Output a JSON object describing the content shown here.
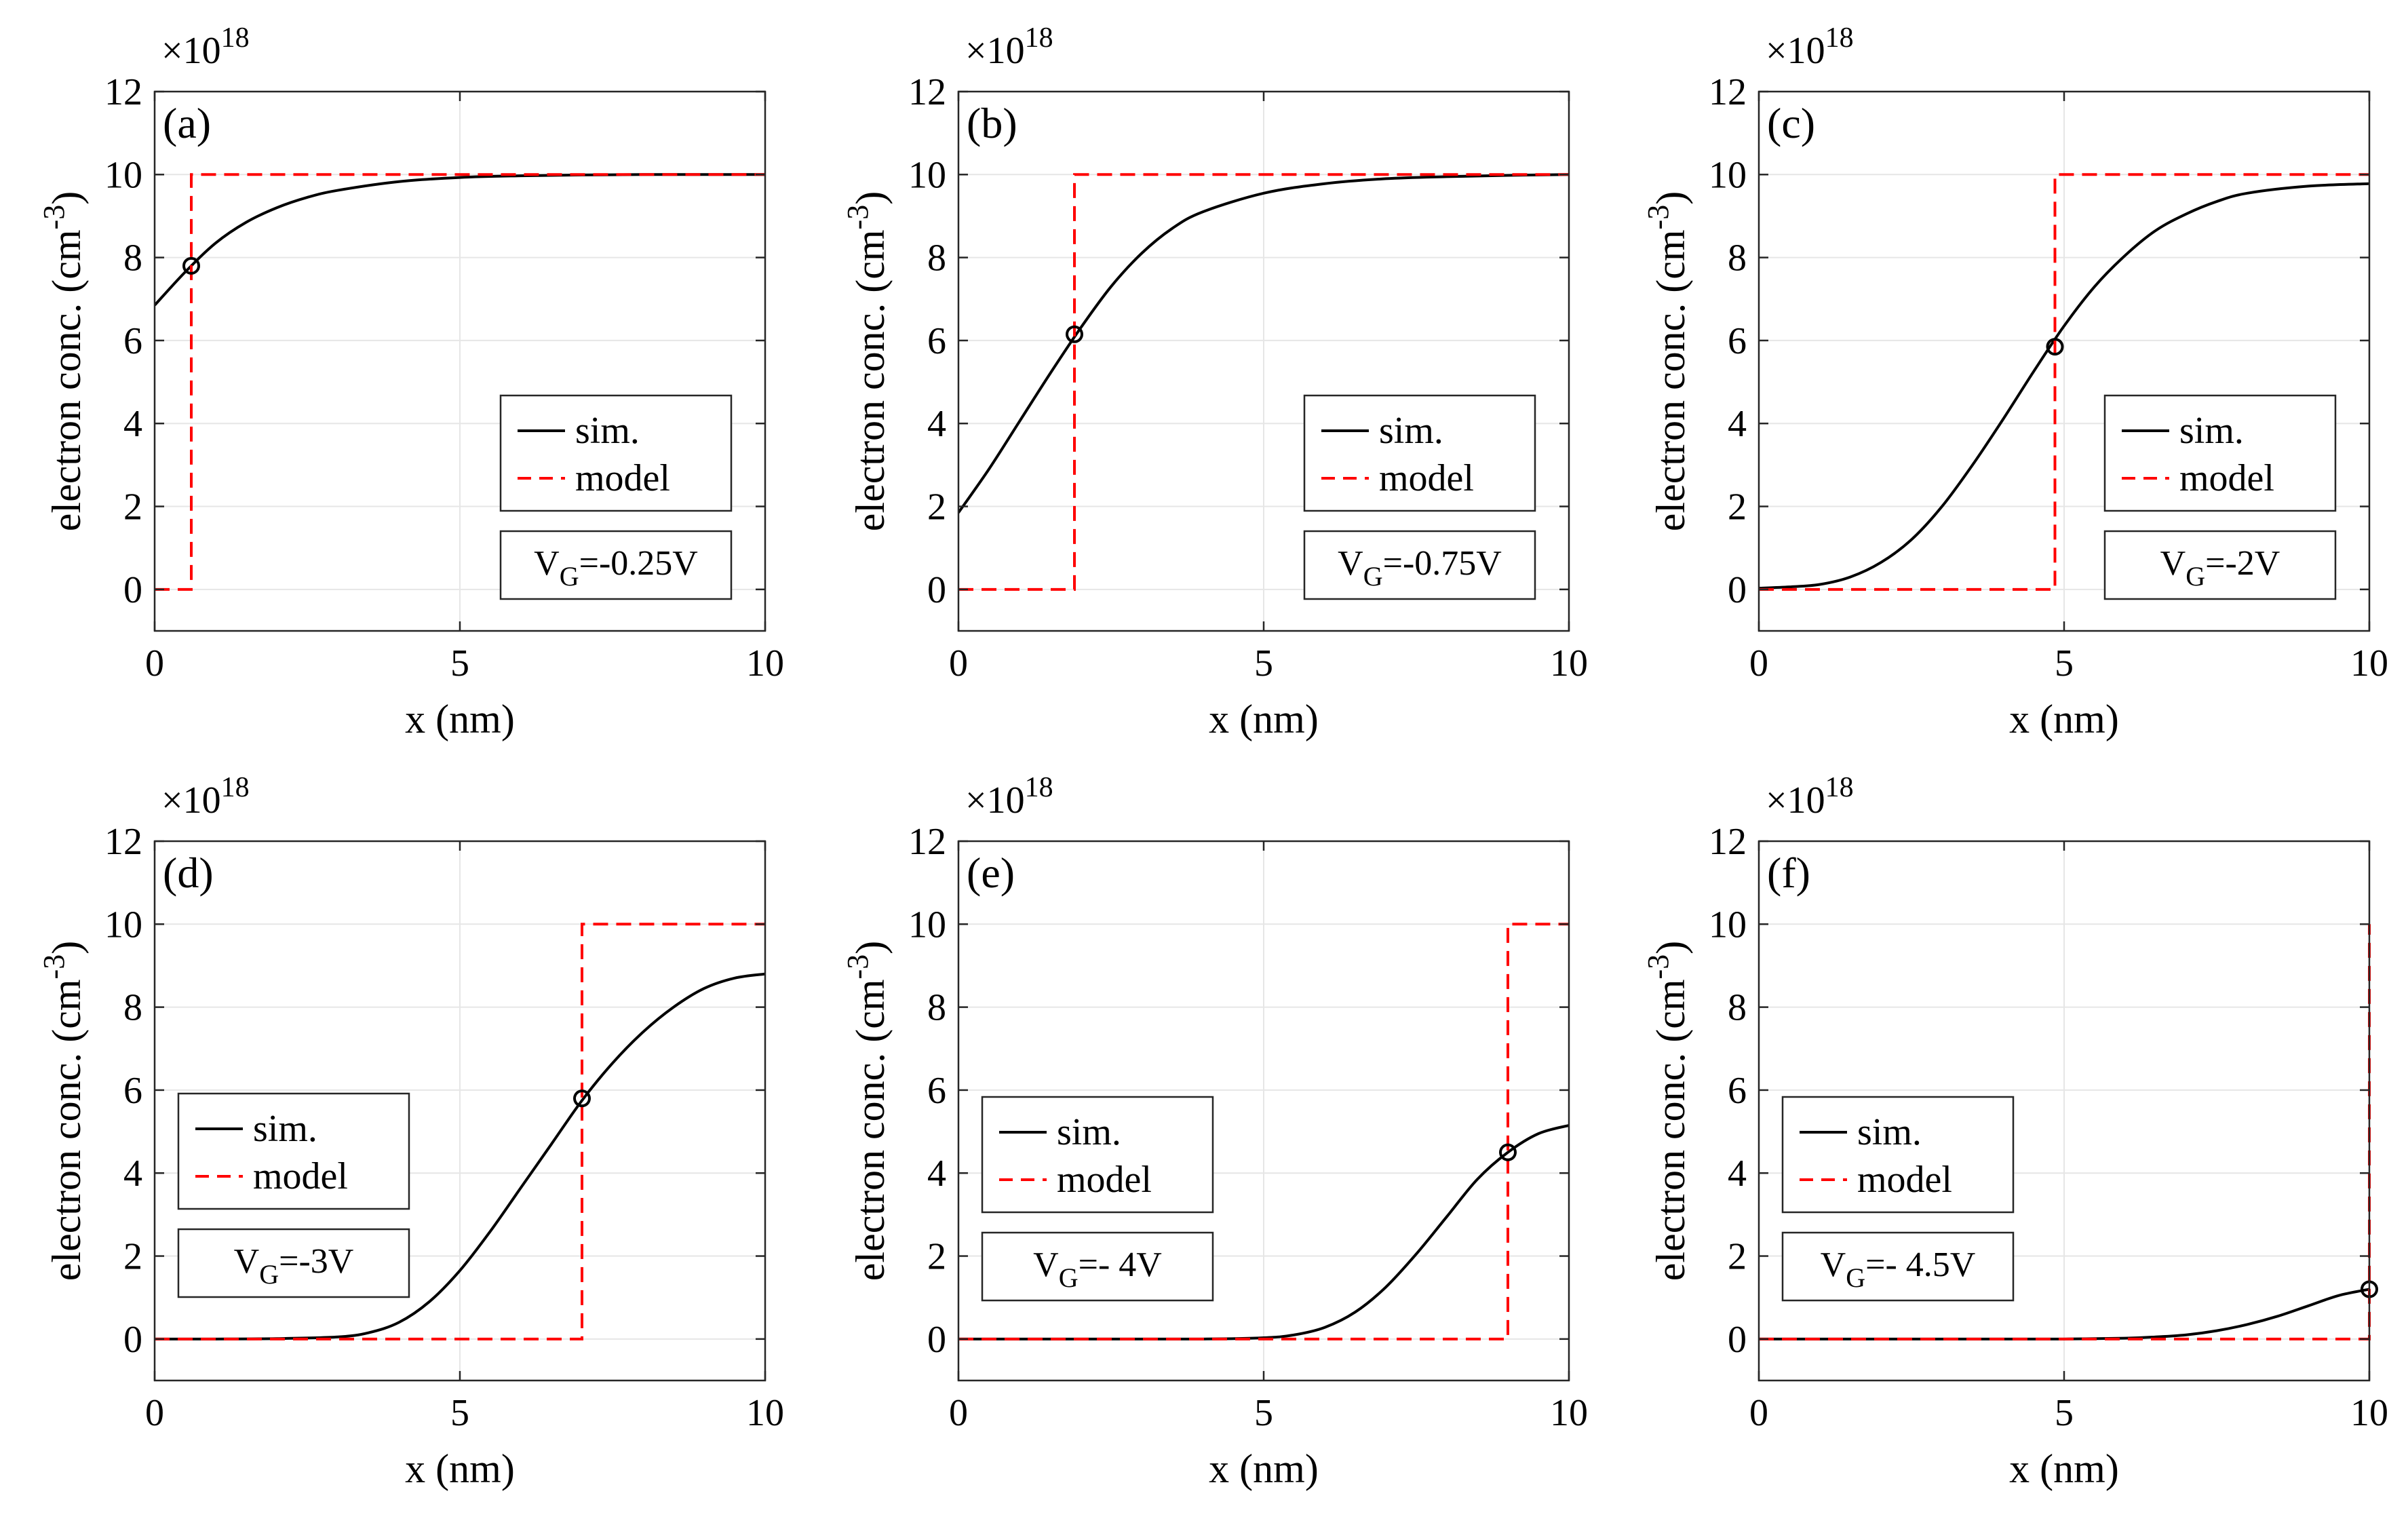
{
  "figure": {
    "multiplier_base": "×10",
    "multiplier_exp": "18"
  },
  "colors": {
    "sim": "#000000",
    "model": "#ff0000",
    "grid": "#e6e6e6",
    "axis": "#262626"
  },
  "chart_data": [
    {
      "type": "line",
      "label": "(a)",
      "xlabel": "x (nm)",
      "ylabel": "electron conc. (cm",
      "ylabel_exp": "-3",
      "xlim": [
        0,
        10
      ],
      "ylim": [
        -1,
        12
      ],
      "xticks": [
        0,
        5,
        10
      ],
      "yticks": [
        0,
        2,
        4,
        6,
        8,
        10,
        12
      ],
      "legend": {
        "sim": "sim.",
        "model": "model",
        "position": "center-right"
      },
      "annotation": {
        "pre": "V",
        "sub": "G",
        "post": "=-0.25V"
      },
      "series": [
        {
          "name": "sim.",
          "style": "solid",
          "x": [
            0,
            0.5,
            1,
            1.5,
            2,
            2.5,
            3,
            4,
            5,
            6,
            7,
            8,
            9,
            10
          ],
          "y": [
            6.85,
            7.65,
            8.35,
            8.85,
            9.2,
            9.45,
            9.62,
            9.83,
            9.93,
            9.97,
            9.99,
            10,
            10,
            10
          ]
        },
        {
          "name": "model",
          "style": "dashed",
          "x": [
            0,
            0.6,
            0.6,
            10
          ],
          "y": [
            0,
            0,
            10,
            10
          ]
        }
      ],
      "marker": {
        "x": 0.6,
        "y": 7.8
      }
    },
    {
      "type": "line",
      "label": "(b)",
      "xlabel": "x (nm)",
      "ylabel": "electron conc. (cm",
      "ylabel_exp": "-3",
      "xlim": [
        0,
        10
      ],
      "ylim": [
        -1,
        12
      ],
      "xticks": [
        0,
        5,
        10
      ],
      "yticks": [
        0,
        2,
        4,
        6,
        8,
        10,
        12
      ],
      "legend": {
        "sim": "sim.",
        "model": "model",
        "position": "center-right"
      },
      "annotation": {
        "pre": "V",
        "sub": "G",
        "post": "=-0.75V"
      },
      "series": [
        {
          "name": "sim.",
          "style": "solid",
          "x": [
            0,
            0.5,
            1,
            1.5,
            2,
            2.5,
            3,
            3.5,
            4,
            5,
            6,
            7,
            8,
            9,
            10
          ],
          "y": [
            1.85,
            2.9,
            4.05,
            5.2,
            6.3,
            7.3,
            8.1,
            8.7,
            9.1,
            9.55,
            9.78,
            9.9,
            9.95,
            9.98,
            10
          ]
        },
        {
          "name": "model",
          "style": "dashed",
          "x": [
            0,
            1.9,
            1.9,
            10
          ],
          "y": [
            0,
            0,
            10,
            10
          ]
        }
      ],
      "marker": {
        "x": 1.9,
        "y": 6.15
      }
    },
    {
      "type": "line",
      "label": "(c)",
      "xlabel": "x (nm)",
      "ylabel": "electron conc. (cm",
      "ylabel_exp": "-3",
      "xlim": [
        0,
        10
      ],
      "ylim": [
        -1,
        12
      ],
      "xticks": [
        0,
        5,
        10
      ],
      "yticks": [
        0,
        2,
        4,
        6,
        8,
        10,
        12
      ],
      "legend": {
        "sim": "sim.",
        "model": "model",
        "position": "center-right"
      },
      "annotation": {
        "pre": "V",
        "sub": "G",
        "post": "=-2V"
      },
      "series": [
        {
          "name": "sim.",
          "style": "solid",
          "x": [
            0,
            0.5,
            1,
            1.5,
            2,
            2.5,
            3,
            3.5,
            4,
            4.5,
            5,
            5.5,
            6,
            6.5,
            7,
            7.5,
            8,
            9,
            10
          ],
          "y": [
            0.03,
            0.06,
            0.12,
            0.3,
            0.65,
            1.2,
            2.0,
            3.0,
            4.1,
            5.25,
            6.35,
            7.3,
            8.05,
            8.65,
            9.05,
            9.35,
            9.55,
            9.72,
            9.78
          ]
        },
        {
          "name": "model",
          "style": "dashed",
          "x": [
            0,
            4.85,
            4.85,
            10
          ],
          "y": [
            0,
            0,
            10,
            10
          ]
        }
      ],
      "marker": {
        "x": 4.85,
        "y": 5.85
      }
    },
    {
      "type": "line",
      "label": "(d)",
      "xlabel": "x (nm)",
      "ylabel": "electron conc. (cm",
      "ylabel_exp": "-3",
      "xlim": [
        0,
        10
      ],
      "ylim": [
        -1,
        12
      ],
      "xticks": [
        0,
        5,
        10
      ],
      "yticks": [
        0,
        2,
        4,
        6,
        8,
        10,
        12
      ],
      "legend": {
        "sim": "sim.",
        "model": "model",
        "position": "center-left"
      },
      "annotation": {
        "pre": "V",
        "sub": "G",
        "post": "=-3V"
      },
      "series": [
        {
          "name": "sim.",
          "style": "solid",
          "x": [
            0,
            1,
            2,
            3,
            3.5,
            4,
            4.5,
            5,
            5.5,
            6,
            6.5,
            7,
            7.5,
            8,
            8.5,
            9,
            9.5,
            10
          ],
          "y": [
            0,
            0,
            0.01,
            0.05,
            0.15,
            0.4,
            0.9,
            1.65,
            2.6,
            3.65,
            4.7,
            5.75,
            6.65,
            7.4,
            8.0,
            8.45,
            8.7,
            8.8
          ]
        },
        {
          "name": "model",
          "style": "dashed",
          "x": [
            0,
            7,
            7,
            10
          ],
          "y": [
            0,
            0,
            10,
            10
          ]
        }
      ],
      "marker": {
        "x": 7,
        "y": 5.8
      }
    },
    {
      "type": "line",
      "label": "(e)",
      "xlabel": "x (nm)",
      "ylabel": "electron conc. (cm",
      "ylabel_exp": "-3",
      "xlim": [
        0,
        10
      ],
      "ylim": [
        -1,
        12
      ],
      "xticks": [
        0,
        5,
        10
      ],
      "yticks": [
        0,
        2,
        4,
        6,
        8,
        10,
        12
      ],
      "legend": {
        "sim": "sim.",
        "model": "model",
        "position": "center-left"
      },
      "annotation": {
        "pre": "V",
        "sub": "G",
        "post": "=- 4V"
      },
      "series": [
        {
          "name": "sim.",
          "style": "solid",
          "x": [
            0,
            2,
            4,
            5,
            5.5,
            6,
            6.5,
            7,
            7.5,
            8,
            8.5,
            9,
            9.5,
            10
          ],
          "y": [
            0,
            0,
            0,
            0.03,
            0.1,
            0.28,
            0.65,
            1.25,
            2.05,
            2.95,
            3.85,
            4.5,
            4.95,
            5.15
          ]
        },
        {
          "name": "model",
          "style": "dashed",
          "x": [
            0,
            9,
            9,
            10
          ],
          "y": [
            0,
            0,
            10,
            10
          ]
        }
      ],
      "marker": {
        "x": 9,
        "y": 4.5
      }
    },
    {
      "type": "line",
      "label": "(f)",
      "xlabel": "x (nm)",
      "ylabel": "electron conc. (cm",
      "ylabel_exp": "-3",
      "xlim": [
        0,
        10
      ],
      "ylim": [
        -1,
        12
      ],
      "xticks": [
        0,
        5,
        10
      ],
      "yticks": [
        0,
        2,
        4,
        6,
        8,
        10,
        12
      ],
      "legend": {
        "sim": "sim.",
        "model": "model",
        "position": "center-left"
      },
      "annotation": {
        "pre": "V",
        "sub": "G",
        "post": "=- 4.5V"
      },
      "series": [
        {
          "name": "sim.",
          "style": "solid",
          "x": [
            0,
            2,
            4,
            5,
            6,
            6.5,
            7,
            7.5,
            8,
            8.5,
            9,
            9.5,
            10
          ],
          "y": [
            0,
            0,
            0,
            0,
            0.02,
            0.05,
            0.1,
            0.2,
            0.35,
            0.55,
            0.8,
            1.05,
            1.2
          ]
        },
        {
          "name": "model",
          "style": "dashed",
          "x": [
            0,
            10,
            10
          ],
          "y": [
            0,
            0,
            10
          ]
        }
      ],
      "marker": {
        "x": 10,
        "y": 1.2
      }
    }
  ]
}
